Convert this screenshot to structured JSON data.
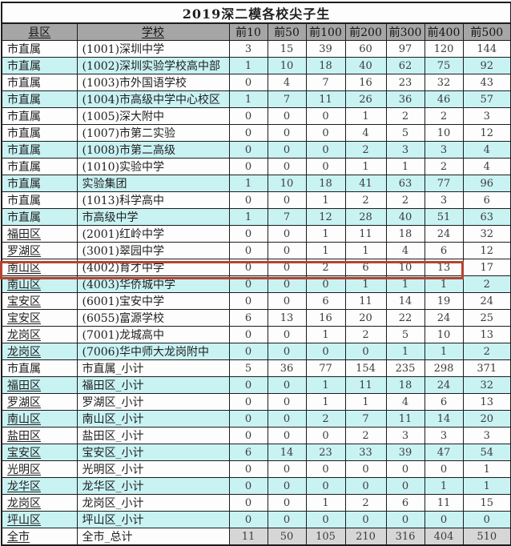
{
  "title": "2019深二模各校尖子生",
  "columns": [
    "县区",
    "学校",
    "前10",
    "前50",
    "前100",
    "前200",
    "前300",
    "前400",
    "前500"
  ],
  "rows": [
    {
      "district": "市直属",
      "school": "(1001)深圳中学",
      "values": [
        3,
        15,
        39,
        60,
        97,
        120,
        144
      ],
      "tint": "white",
      "district_underline": false
    },
    {
      "district": "市直属",
      "school": "(1002)深圳实验学校高中部",
      "values": [
        1,
        10,
        18,
        40,
        62,
        75,
        92
      ],
      "tint": "cyan",
      "district_underline": false
    },
    {
      "district": "市直属",
      "school": "(1003)市外国语学校",
      "values": [
        0,
        4,
        7,
        16,
        23,
        32,
        43
      ],
      "tint": "white",
      "district_underline": false
    },
    {
      "district": "市直属",
      "school": "(1004)市高级中学中心校区",
      "values": [
        1,
        7,
        11,
        26,
        36,
        46,
        57
      ],
      "tint": "cyan",
      "district_underline": false
    },
    {
      "district": "市直属",
      "school": "(1005)深大附中",
      "values": [
        0,
        0,
        0,
        1,
        2,
        2,
        3
      ],
      "tint": "white",
      "district_underline": false
    },
    {
      "district": "市直属",
      "school": "(1007)市第二实验",
      "values": [
        0,
        0,
        0,
        4,
        5,
        10,
        12
      ],
      "tint": "white",
      "district_underline": false
    },
    {
      "district": "市直属",
      "school": "(1008)市第二高级",
      "values": [
        0,
        0,
        0,
        2,
        3,
        3,
        4
      ],
      "tint": "cyan",
      "district_underline": false
    },
    {
      "district": "市直属",
      "school": "(1010)实验中学",
      "values": [
        0,
        0,
        0,
        1,
        1,
        2,
        4
      ],
      "tint": "white",
      "district_underline": false
    },
    {
      "district": "市直属",
      "school": "实验集团",
      "values": [
        1,
        10,
        18,
        41,
        63,
        77,
        96
      ],
      "tint": "cyan",
      "district_underline": false
    },
    {
      "district": "市直属",
      "school": "(1013)科学高中",
      "values": [
        0,
        0,
        1,
        2,
        2,
        3,
        6
      ],
      "tint": "white",
      "district_underline": false
    },
    {
      "district": "市直属",
      "school": "市高级中学",
      "values": [
        1,
        7,
        12,
        28,
        40,
        51,
        63
      ],
      "tint": "cyan",
      "district_underline": false
    },
    {
      "district": "福田区",
      "school": "(2001)红岭中学",
      "values": [
        0,
        0,
        1,
        11,
        18,
        24,
        32
      ],
      "tint": "white",
      "district_underline": true
    },
    {
      "district": "罗湖区",
      "school": "(3001)翠园中学",
      "values": [
        0,
        0,
        1,
        1,
        4,
        6,
        12
      ],
      "tint": "white",
      "district_underline": true
    },
    {
      "district": "南山区",
      "school": "(4002)育才中学",
      "values": [
        0,
        0,
        2,
        6,
        10,
        13,
        17
      ],
      "tint": "white",
      "district_underline": true
    },
    {
      "district": "南山区",
      "school": "(4003)华侨城中学",
      "values": [
        0,
        0,
        0,
        1,
        1,
        1,
        2
      ],
      "tint": "cyan",
      "district_underline": true
    },
    {
      "district": "宝安区",
      "school": "(6001)宝安中学",
      "values": [
        0,
        0,
        6,
        11,
        14,
        19,
        24
      ],
      "tint": "white",
      "district_underline": true
    },
    {
      "district": "宝安区",
      "school": "(6055)富源学校",
      "values": [
        6,
        13,
        16,
        20,
        22,
        24,
        25
      ],
      "tint": "white",
      "district_underline": true
    },
    {
      "district": "龙岗区",
      "school": "(7001)龙城高中",
      "values": [
        0,
        0,
        1,
        2,
        5,
        10,
        13
      ],
      "tint": "white",
      "district_underline": true
    },
    {
      "district": "龙岗区",
      "school": "(7006)华中师大龙岗附中",
      "values": [
        0,
        0,
        0,
        0,
        1,
        1,
        2
      ],
      "tint": "cyan",
      "district_underline": true
    },
    {
      "district": "市直属",
      "school": "市直属_小计",
      "values": [
        5,
        36,
        77,
        154,
        235,
        298,
        371
      ],
      "tint": "white",
      "district_underline": false
    },
    {
      "district": "福田区",
      "school": "福田区_小计",
      "values": [
        0,
        0,
        1,
        11,
        18,
        24,
        32
      ],
      "tint": "cyan",
      "district_underline": true
    },
    {
      "district": "罗湖区",
      "school": "罗湖区_小计",
      "values": [
        0,
        0,
        1,
        1,
        4,
        6,
        13
      ],
      "tint": "white",
      "district_underline": true
    },
    {
      "district": "南山区",
      "school": "南山区_小计",
      "values": [
        0,
        0,
        2,
        7,
        11,
        14,
        20
      ],
      "tint": "cyan",
      "district_underline": true
    },
    {
      "district": "盐田区",
      "school": "盐田区_小计",
      "values": [
        0,
        0,
        0,
        2,
        3,
        3,
        3
      ],
      "tint": "white",
      "district_underline": true
    },
    {
      "district": "宝安区",
      "school": "宝安区_小计",
      "values": [
        6,
        14,
        23,
        33,
        39,
        47,
        54
      ],
      "tint": "cyan",
      "district_underline": true
    },
    {
      "district": "光明区",
      "school": "光明区_小计",
      "values": [
        0,
        0,
        0,
        0,
        0,
        0,
        1
      ],
      "tint": "white",
      "district_underline": true
    },
    {
      "district": "龙华区",
      "school": "龙华区_小计",
      "values": [
        0,
        0,
        0,
        0,
        0,
        1,
        1
      ],
      "tint": "cyan",
      "district_underline": true
    },
    {
      "district": "龙岗区",
      "school": "龙岗区_小计",
      "values": [
        0,
        0,
        1,
        2,
        6,
        11,
        15
      ],
      "tint": "white",
      "district_underline": true
    },
    {
      "district": "坪山区",
      "school": "坪山区_小计",
      "values": [
        0,
        0,
        0,
        0,
        0,
        0,
        0
      ],
      "tint": "cyan",
      "district_underline": true
    },
    {
      "district": "全市",
      "school": "全市_总计",
      "values": [
        11,
        50,
        105,
        210,
        316,
        404,
        510
      ],
      "tint": "total",
      "district_underline": true
    }
  ],
  "highlight": {
    "row_index": 16,
    "target_school": "(6055)富源学校",
    "color": "#b5432e"
  },
  "chart_data": {
    "type": "table",
    "title": "2019深二模各校尖子生",
    "categories": [
      "前10",
      "前50",
      "前100",
      "前200",
      "前300",
      "前400",
      "前500"
    ],
    "citywide_total": [
      11,
      50,
      105,
      210,
      316,
      404,
      510
    ]
  },
  "colors": {
    "header_bg": "#a6a6a6",
    "row_cyan": "#c9f2f3",
    "row_white": "#fdfdfd",
    "total_gray": "#d6d6d6",
    "border": "#1c1c1c",
    "highlight_red": "#b5432e"
  }
}
